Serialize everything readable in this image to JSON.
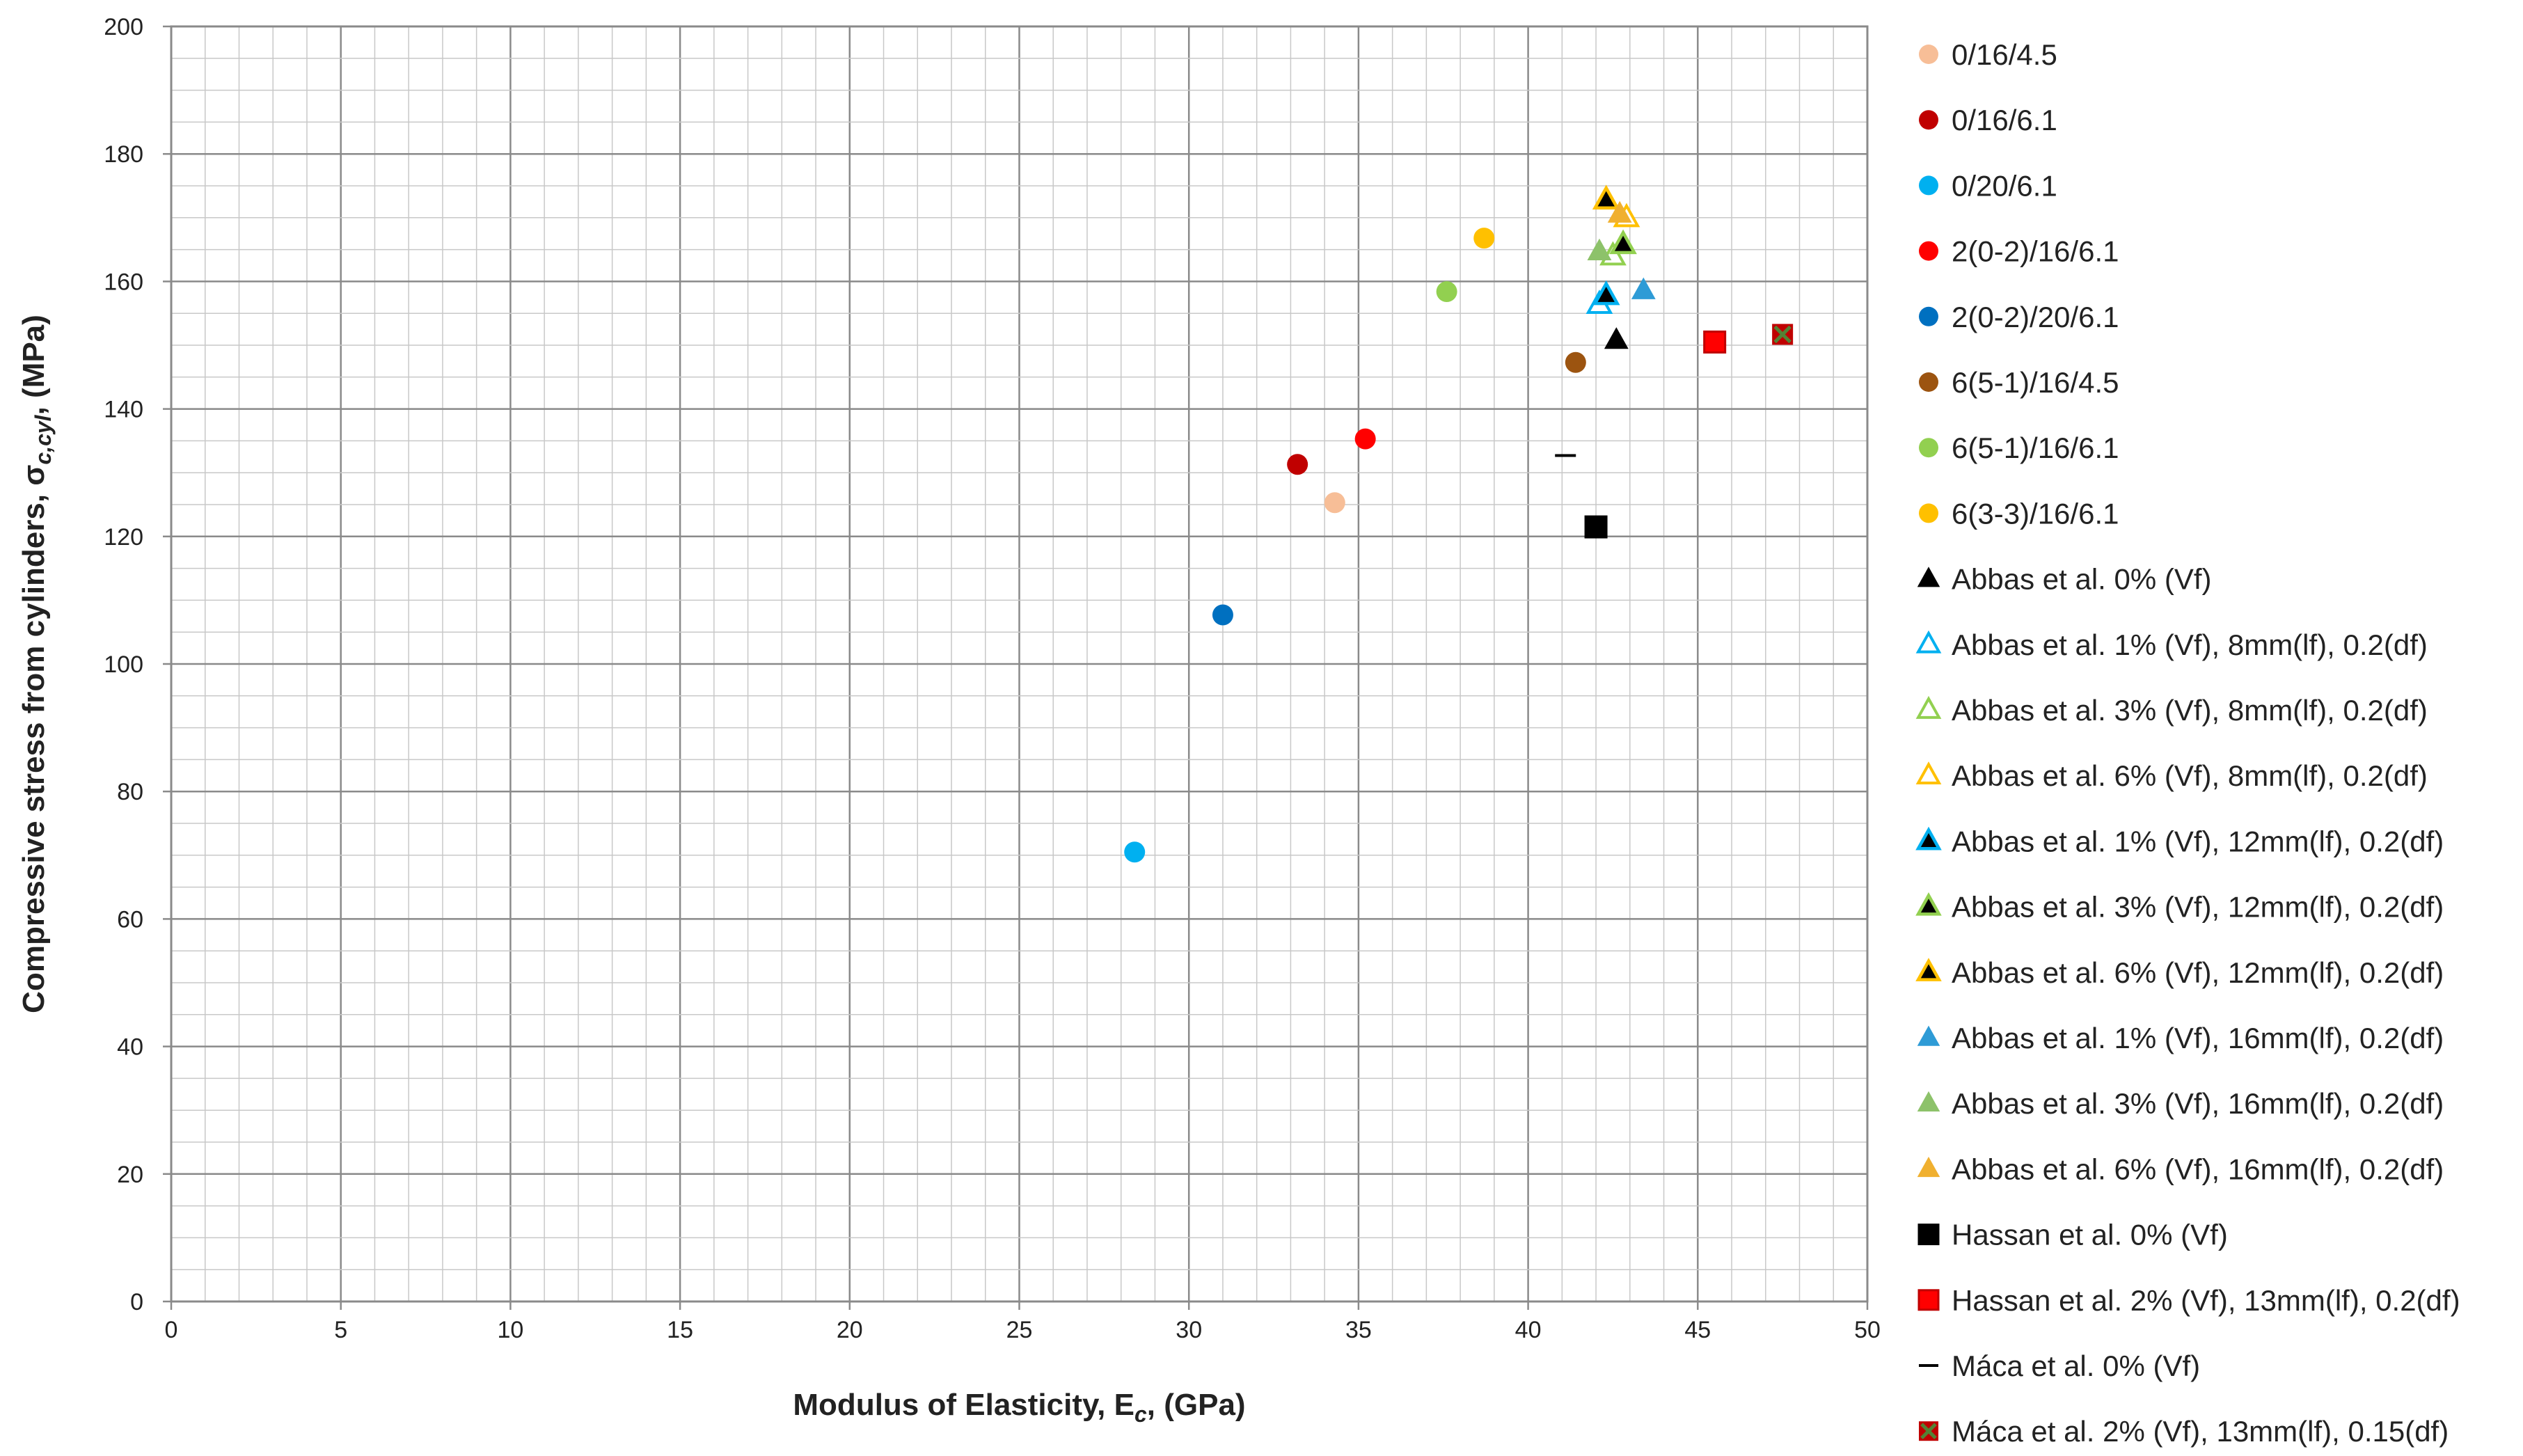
{
  "chart_data": {
    "type": "scatter",
    "xlabel": "Modulus of Elasticity, E",
    "xlabel_sub": "c",
    "xlabel_tail": ", (GPa)",
    "ylabel": "Compressive stress from cylinders, σ",
    "ylabel_sub": "c,cyl",
    "ylabel_tail": ", (MPa)",
    "xlim": [
      0,
      50
    ],
    "ylim": [
      0,
      200
    ],
    "x_ticks": [
      "0",
      "5",
      "10",
      "15",
      "20",
      "25",
      "30",
      "35",
      "40",
      "45",
      "50"
    ],
    "y_ticks": [
      "0",
      "20",
      "40",
      "60",
      "80",
      "100",
      "120",
      "140",
      "160",
      "180",
      "200"
    ],
    "grid": true,
    "legend_position": "right",
    "series": [
      {
        "name": "0/16/4.5",
        "marker": "circle",
        "color": "#F7BE97",
        "points": [
          [
            34.3,
            125.3
          ]
        ]
      },
      {
        "name": "0/16/6.1",
        "marker": "circle",
        "color": "#C00000",
        "points": [
          [
            33.2,
            131.3
          ]
        ]
      },
      {
        "name": "0/20/6.1",
        "marker": "circle",
        "color": "#00B0F0",
        "points": [
          [
            28.4,
            70.5
          ]
        ]
      },
      {
        "name": "2(0-2)/16/6.1",
        "marker": "circle",
        "color": "#FF0000",
        "points": [
          [
            35.2,
            135.3
          ]
        ]
      },
      {
        "name": "2(0-2)/20/6.1",
        "marker": "circle",
        "color": "#0070C0",
        "points": [
          [
            31.0,
            107.7
          ]
        ]
      },
      {
        "name": "6(5-1)/16/4.5",
        "marker": "circle",
        "color": "#9C5410",
        "points": [
          [
            41.4,
            147.3
          ]
        ]
      },
      {
        "name": "6(5-1)/16/6.1",
        "marker": "circle",
        "color": "#92D050",
        "points": [
          [
            37.6,
            158.4
          ]
        ]
      },
      {
        "name": "6(3-3)/16/6.1",
        "marker": "circle",
        "color": "#FFC000",
        "points": [
          [
            38.7,
            166.8
          ]
        ]
      },
      {
        "name": "Abbas et al. 0% (Vf)",
        "marker": "triangle",
        "color": "#000000",
        "points": [
          [
            42.6,
            150.8
          ]
        ]
      },
      {
        "name": "Abbas et al. 1% (Vf), 8mm(lf), 0.2(df)",
        "marker": "triangle-open",
        "color": "#00B0F0",
        "points": [
          [
            42.1,
            156.4
          ]
        ]
      },
      {
        "name": "Abbas et al. 3% (Vf), 8mm(lf), 0.2(df)",
        "marker": "triangle-open",
        "color": "#92D050",
        "points": [
          [
            42.5,
            164.0
          ]
        ]
      },
      {
        "name": "Abbas et al. 6% (Vf), 8mm(lf), 0.2(df)",
        "marker": "triangle-open",
        "color": "#FFC000",
        "points": [
          [
            42.9,
            170.0
          ]
        ]
      },
      {
        "name": "Abbas et al. 1% (Vf), 12mm(lf), 0.2(df)",
        "marker": "triangle-edged",
        "color": "#000000",
        "edge": "#00B0F0",
        "points": [
          [
            42.3,
            157.8
          ]
        ]
      },
      {
        "name": "Abbas et al. 3% (Vf), 12mm(lf), 0.2(df)",
        "marker": "triangle-edged",
        "color": "#000000",
        "edge": "#92D050",
        "points": [
          [
            42.8,
            165.8
          ]
        ]
      },
      {
        "name": "Abbas et al. 6% (Vf), 12mm(lf), 0.2(df)",
        "marker": "triangle-edged",
        "color": "#000000",
        "edge": "#FFC000",
        "points": [
          [
            42.3,
            172.8
          ]
        ]
      },
      {
        "name": "Abbas et al. 1% (Vf), 16mm(lf), 0.2(df)",
        "marker": "triangle",
        "color": "#2E9BD6",
        "points": [
          [
            43.4,
            158.6
          ]
        ]
      },
      {
        "name": "Abbas et al. 3% (Vf), 16mm(lf), 0.2(df)",
        "marker": "triangle",
        "color": "#8DC26A",
        "points": [
          [
            42.1,
            164.7
          ]
        ]
      },
      {
        "name": "Abbas et al. 6% (Vf), 16mm(lf), 0.2(df)",
        "marker": "triangle",
        "color": "#F0B030",
        "points": [
          [
            42.7,
            170.6
          ]
        ]
      },
      {
        "name": "Hassan et al. 0% (Vf)",
        "marker": "square",
        "color": "#000000",
        "points": [
          [
            42.0,
            121.5
          ]
        ]
      },
      {
        "name": "Hassan et al. 2% (Vf), 13mm(lf), 0.2(df)",
        "marker": "square",
        "color": "#FF0000",
        "edge": "#C00000",
        "points": [
          [
            45.5,
            150.5
          ]
        ]
      },
      {
        "name": "Máca et al. 0% (Vf)",
        "marker": "dash",
        "color": "#000000",
        "points": [
          [
            41.1,
            132.7
          ]
        ]
      },
      {
        "name": "Máca et al. 2% (Vf), 13mm(lf), 0.15(df)",
        "marker": "square-x",
        "color": "#C00000",
        "edge": "#548235",
        "points": [
          [
            47.5,
            151.7
          ]
        ]
      }
    ]
  }
}
